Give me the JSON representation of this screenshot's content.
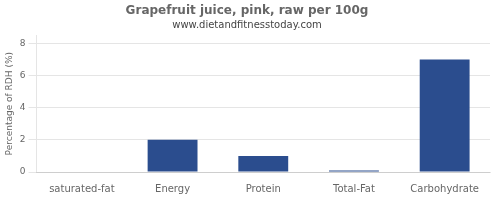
{
  "chart_data": {
    "type": "bar",
    "title": "Grapefruit juice, pink, raw per 100g",
    "subtitle": "www.dietandfitnesstoday.com",
    "categories": [
      "saturated-fat",
      "Energy",
      "Protein",
      "Total-Fat",
      "Carbohydrate"
    ],
    "values": [
      0.0,
      2.0,
      1.0,
      0.1,
      7.0
    ],
    "color": "#2b4d8e",
    "ylabel": "Percentage of RDH (%)",
    "ylim": [
      0,
      8.5
    ],
    "yticks": [
      0,
      2,
      4,
      6,
      8
    ],
    "grid": true
  }
}
